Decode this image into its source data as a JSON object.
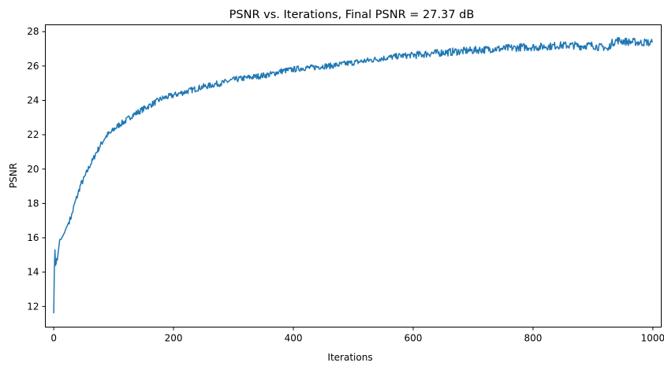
{
  "chart_data": {
    "type": "line",
    "title": "PSNR vs. Iterations, Final PSNR = 27.37 dB",
    "xlabel": "Iterations",
    "ylabel": "PSNR",
    "xlim": [
      -14,
      1014
    ],
    "ylim": [
      10.8,
      28.4
    ],
    "x_ticks": [
      0,
      200,
      400,
      600,
      800,
      1000
    ],
    "y_ticks": [
      12,
      14,
      16,
      18,
      20,
      22,
      24,
      26,
      28
    ],
    "grid": false,
    "legend": "none",
    "series": [
      {
        "color": "#1f77b4",
        "x": [
          0,
          1,
          2,
          3,
          4,
          5,
          6,
          8,
          10,
          12,
          15,
          18,
          20,
          25,
          30,
          35,
          40,
          45,
          50,
          55,
          60,
          65,
          70,
          75,
          80,
          85,
          90,
          95,
          100,
          110,
          120,
          130,
          140,
          150,
          160,
          170,
          180,
          190,
          200,
          210,
          220,
          230,
          240,
          250,
          260,
          270,
          280,
          290,
          300,
          310,
          320,
          330,
          340,
          350,
          360,
          370,
          380,
          390,
          400,
          410,
          420,
          430,
          440,
          450,
          460,
          470,
          480,
          490,
          500,
          510,
          520,
          530,
          540,
          550,
          560,
          570,
          580,
          590,
          600,
          610,
          620,
          630,
          640,
          650,
          660,
          670,
          680,
          690,
          700,
          710,
          720,
          730,
          740,
          750,
          760,
          770,
          780,
          790,
          800,
          810,
          820,
          830,
          840,
          850,
          860,
          870,
          880,
          890,
          900,
          910,
          920,
          925,
          930,
          935,
          940,
          950,
          960,
          970,
          980,
          990,
          995,
          999
        ],
        "y": [
          11.6,
          14.1,
          15.3,
          14.4,
          14.5,
          14.8,
          14.7,
          15.3,
          15.9,
          15.9,
          16.1,
          16.3,
          16.5,
          16.9,
          17.3,
          18.0,
          18.5,
          19.1,
          19.4,
          19.8,
          20.2,
          20.5,
          20.9,
          21.2,
          21.5,
          21.8,
          22.0,
          22.1,
          22.3,
          22.6,
          22.8,
          23.1,
          23.3,
          23.5,
          23.7,
          23.9,
          24.1,
          24.2,
          24.3,
          24.4,
          24.5,
          24.6,
          24.7,
          24.8,
          24.85,
          24.95,
          25.0,
          25.1,
          25.2,
          25.25,
          25.3,
          25.35,
          25.4,
          25.45,
          25.5,
          25.6,
          25.7,
          25.75,
          25.8,
          25.85,
          25.9,
          25.9,
          25.95,
          26.0,
          26.0,
          26.05,
          26.1,
          26.15,
          26.2,
          26.25,
          26.3,
          26.35,
          26.4,
          26.45,
          26.5,
          26.55,
          26.6,
          26.6,
          26.65,
          26.65,
          26.7,
          26.75,
          26.75,
          26.8,
          26.8,
          26.85,
          26.85,
          26.9,
          26.9,
          26.95,
          26.95,
          27.0,
          27.0,
          27.0,
          27.05,
          27.05,
          27.1,
          27.1,
          27.1,
          27.1,
          27.15,
          27.15,
          27.2,
          27.2,
          27.2,
          27.2,
          27.15,
          27.2,
          27.2,
          27.1,
          27.1,
          26.9,
          27.3,
          27.4,
          27.5,
          27.45,
          27.4,
          27.4,
          27.35,
          27.4,
          27.3,
          27.37
        ]
      }
    ]
  }
}
